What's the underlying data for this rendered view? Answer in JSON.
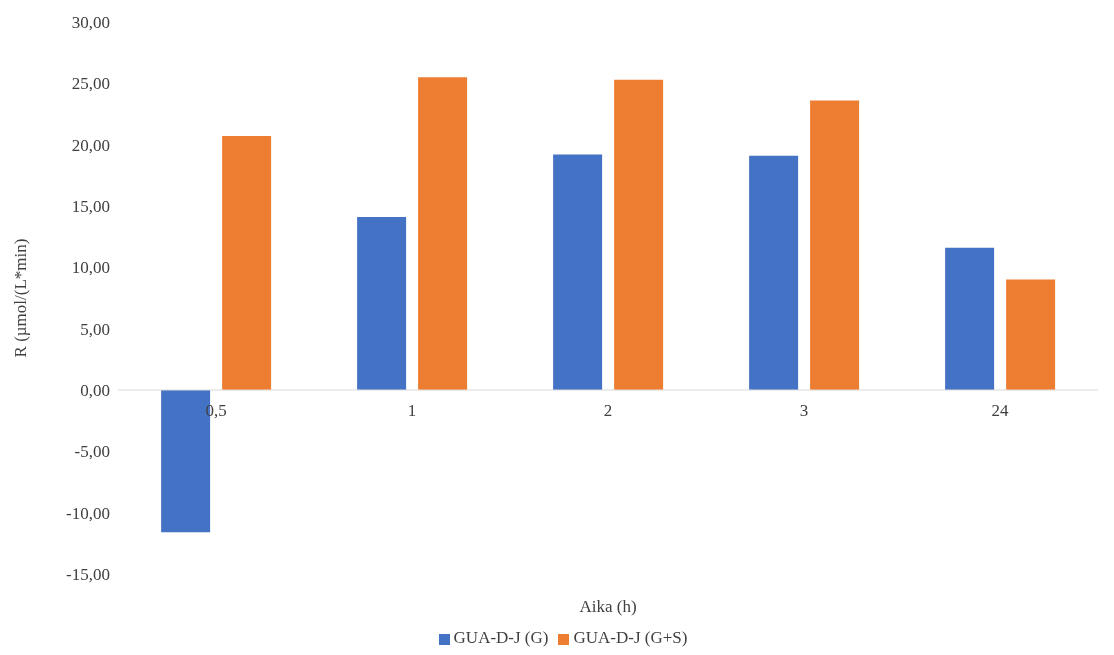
{
  "chart_data": {
    "type": "bar",
    "xlabel": "Aika (h)",
    "ylabel": "R (µmol/(L*min)",
    "categories": [
      "0,5",
      "1",
      "2",
      "3",
      "24"
    ],
    "series": [
      {
        "name": "GUA-D-J (G)",
        "color": "#4472c4",
        "values": [
          -11.6,
          14.1,
          19.2,
          19.1,
          11.6
        ]
      },
      {
        "name": "GUA-D-J (G+S)",
        "color": "#ed7d31",
        "values": [
          20.7,
          25.5,
          25.3,
          23.6,
          9.0
        ]
      }
    ],
    "ylim": [
      -15,
      30
    ],
    "yticks": [
      {
        "value": -15,
        "label": "-15,00"
      },
      {
        "value": -10,
        "label": "-10,00"
      },
      {
        "value": -5,
        "label": "-5,00"
      },
      {
        "value": 0,
        "label": "0,00"
      },
      {
        "value": 5,
        "label": "5,00"
      },
      {
        "value": 10,
        "label": "10,00"
      },
      {
        "value": 15,
        "label": "15,00"
      },
      {
        "value": 20,
        "label": "20,00"
      },
      {
        "value": 25,
        "label": "25,00"
      },
      {
        "value": 30,
        "label": "30,00"
      }
    ],
    "grid": false,
    "legend": "bottom"
  }
}
